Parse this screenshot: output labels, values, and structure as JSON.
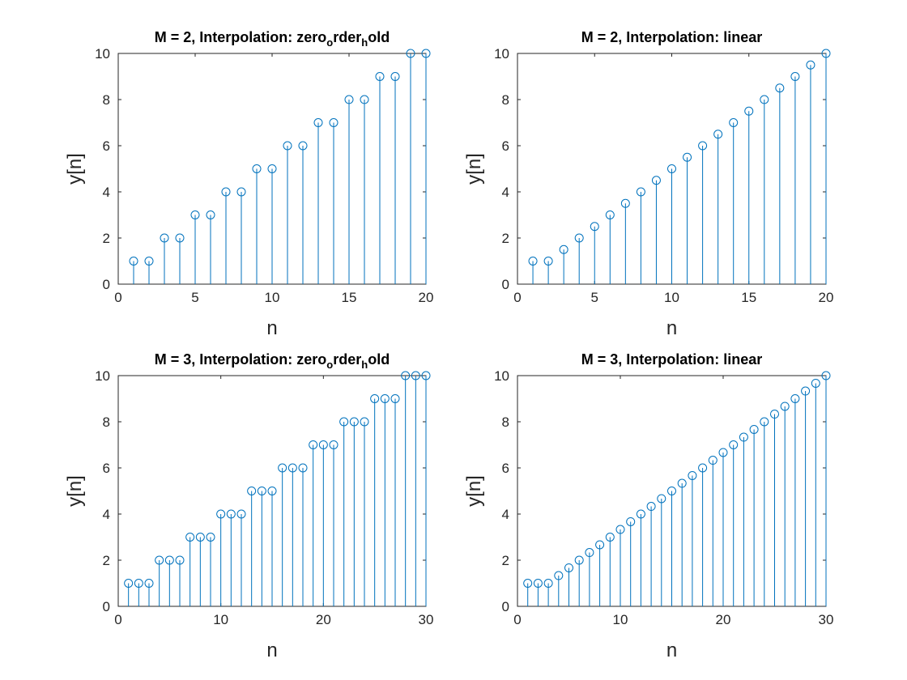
{
  "colors": {
    "stem": "#0072BD",
    "axes": "#262626",
    "background": "#ffffff"
  },
  "chart_data": [
    {
      "type": "stem",
      "title": {
        "prefix": "M = 2, Interpolation: zero",
        "sub1": "o",
        "mid": "rder",
        "sub2": "h",
        "suffix": "old"
      },
      "xlabel": "n",
      "ylabel": "y[n]",
      "xlim": [
        0,
        20
      ],
      "ylim": [
        0,
        10
      ],
      "xticks": [
        0,
        5,
        10,
        15,
        20
      ],
      "yticks": [
        0,
        2,
        4,
        6,
        8,
        10
      ],
      "x": [
        1,
        2,
        3,
        4,
        5,
        6,
        7,
        8,
        9,
        10,
        11,
        12,
        13,
        14,
        15,
        16,
        17,
        18,
        19,
        20
      ],
      "y": [
        1,
        1,
        2,
        2,
        3,
        3,
        4,
        4,
        5,
        5,
        6,
        6,
        7,
        7,
        8,
        8,
        9,
        9,
        10,
        10
      ]
    },
    {
      "type": "stem",
      "title": {
        "prefix": "M = 2, Interpolation: linear",
        "sub1": "",
        "mid": "",
        "sub2": "",
        "suffix": ""
      },
      "xlabel": "n",
      "ylabel": "y[n]",
      "xlim": [
        0,
        20
      ],
      "ylim": [
        0,
        10
      ],
      "xticks": [
        0,
        5,
        10,
        15,
        20
      ],
      "yticks": [
        0,
        2,
        4,
        6,
        8,
        10
      ],
      "x": [
        1,
        2,
        3,
        4,
        5,
        6,
        7,
        8,
        9,
        10,
        11,
        12,
        13,
        14,
        15,
        16,
        17,
        18,
        19,
        20
      ],
      "y": [
        1,
        1,
        1.5,
        2,
        2.5,
        3,
        3.5,
        4,
        4.5,
        5,
        5.5,
        6,
        6.5,
        7,
        7.5,
        8,
        8.5,
        9,
        9.5,
        10
      ]
    },
    {
      "type": "stem",
      "title": {
        "prefix": "M = 3, Interpolation: zero",
        "sub1": "o",
        "mid": "rder",
        "sub2": "h",
        "suffix": "old"
      },
      "xlabel": "n",
      "ylabel": "y[n]",
      "xlim": [
        0,
        30
      ],
      "ylim": [
        0,
        10
      ],
      "xticks": [
        0,
        10,
        20,
        30
      ],
      "yticks": [
        0,
        2,
        4,
        6,
        8,
        10
      ],
      "x": [
        1,
        2,
        3,
        4,
        5,
        6,
        7,
        8,
        9,
        10,
        11,
        12,
        13,
        14,
        15,
        16,
        17,
        18,
        19,
        20,
        21,
        22,
        23,
        24,
        25,
        26,
        27,
        28,
        29,
        30
      ],
      "y": [
        1,
        1,
        1,
        2,
        2,
        2,
        3,
        3,
        3,
        4,
        4,
        4,
        5,
        5,
        5,
        6,
        6,
        6,
        7,
        7,
        7,
        8,
        8,
        8,
        9,
        9,
        9,
        10,
        10,
        10
      ]
    },
    {
      "type": "stem",
      "title": {
        "prefix": "M = 3, Interpolation: linear",
        "sub1": "",
        "mid": "",
        "sub2": "",
        "suffix": ""
      },
      "xlabel": "n",
      "ylabel": "y[n]",
      "xlim": [
        0,
        30
      ],
      "ylim": [
        0,
        10
      ],
      "xticks": [
        0,
        10,
        20,
        30
      ],
      "yticks": [
        0,
        2,
        4,
        6,
        8,
        10
      ],
      "x": [
        1,
        2,
        3,
        4,
        5,
        6,
        7,
        8,
        9,
        10,
        11,
        12,
        13,
        14,
        15,
        16,
        17,
        18,
        19,
        20,
        21,
        22,
        23,
        24,
        25,
        26,
        27,
        28,
        29,
        30
      ],
      "y": [
        1,
        1,
        1,
        1.333,
        1.667,
        2,
        2.333,
        2.667,
        3,
        3.333,
        3.667,
        4,
        4.333,
        4.667,
        5,
        5.333,
        5.667,
        6,
        6.333,
        6.667,
        7,
        7.333,
        7.667,
        8,
        8.333,
        8.667,
        9,
        9.333,
        9.667,
        10
      ]
    }
  ]
}
